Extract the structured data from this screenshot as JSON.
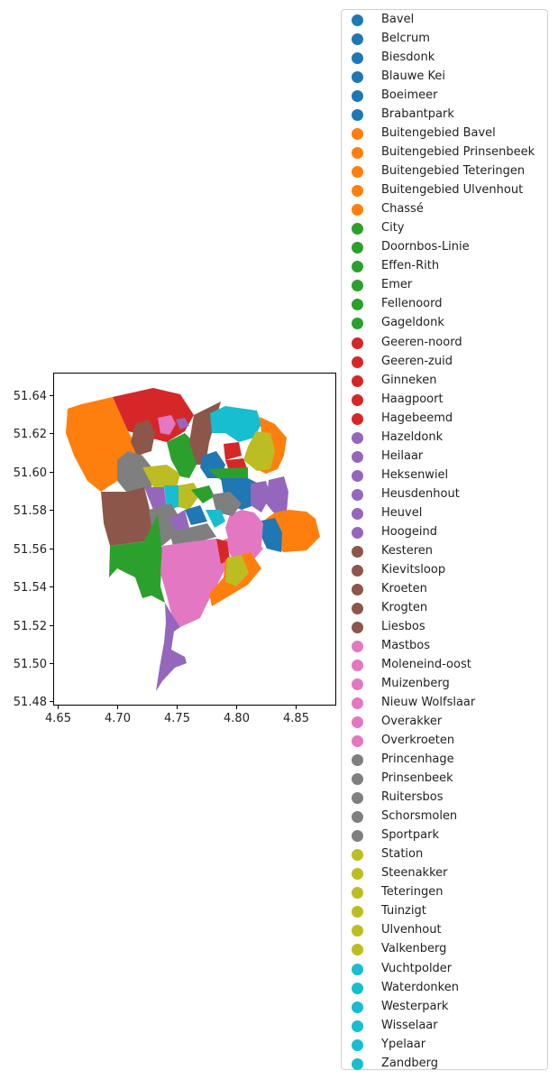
{
  "map": {
    "x_ticks": [
      "4.65",
      "4.70",
      "4.75",
      "4.80",
      "4.85"
    ],
    "y_ticks": [
      "51.64",
      "51.62",
      "51.60",
      "51.58",
      "51.56",
      "51.54",
      "51.52",
      "51.50",
      "51.48"
    ],
    "x_range": [
      4.65,
      4.885
    ],
    "y_range": [
      51.477,
      51.651
    ],
    "colormap": [
      "#1f77b4",
      "#ff7f0e",
      "#2ca02c",
      "#d62728",
      "#9467bd",
      "#8c564b",
      "#e377c2",
      "#7f7f7f",
      "#bcbd22",
      "#17becf"
    ],
    "legend_placement": "right, outside plot"
  },
  "legend": {
    "entries": [
      {
        "label": "Bavel",
        "color": "#1f77b4"
      },
      {
        "label": "Belcrum",
        "color": "#1f77b4"
      },
      {
        "label": "Biesdonk",
        "color": "#1f77b4"
      },
      {
        "label": "Blauwe Kei",
        "color": "#1f77b4"
      },
      {
        "label": "Boeimeer",
        "color": "#1f77b4"
      },
      {
        "label": "Brabantpark",
        "color": "#1f77b4"
      },
      {
        "label": "Buitengebied Bavel",
        "color": "#ff7f0e"
      },
      {
        "label": "Buitengebied Prinsenbeek",
        "color": "#ff7f0e"
      },
      {
        "label": "Buitengebied Teteringen",
        "color": "#ff7f0e"
      },
      {
        "label": "Buitengebied Ulvenhout",
        "color": "#ff7f0e"
      },
      {
        "label": "Chassé",
        "color": "#ff7f0e"
      },
      {
        "label": "City",
        "color": "#2ca02c"
      },
      {
        "label": "Doornbos-Linie",
        "color": "#2ca02c"
      },
      {
        "label": "Effen-Rith",
        "color": "#2ca02c"
      },
      {
        "label": "Emer",
        "color": "#2ca02c"
      },
      {
        "label": "Fellenoord",
        "color": "#2ca02c"
      },
      {
        "label": "Gageldonk",
        "color": "#2ca02c"
      },
      {
        "label": "Geeren-noord",
        "color": "#d62728"
      },
      {
        "label": "Geeren-zuid",
        "color": "#d62728"
      },
      {
        "label": "Ginneken",
        "color": "#d62728"
      },
      {
        "label": "Haagpoort",
        "color": "#d62728"
      },
      {
        "label": "Hagebeemd",
        "color": "#d62728"
      },
      {
        "label": "Hazeldonk",
        "color": "#9467bd"
      },
      {
        "label": "Heilaar",
        "color": "#9467bd"
      },
      {
        "label": "Heksenwiel",
        "color": "#9467bd"
      },
      {
        "label": "Heusdenhout",
        "color": "#9467bd"
      },
      {
        "label": "Heuvel",
        "color": "#9467bd"
      },
      {
        "label": "Hoogeind",
        "color": "#9467bd"
      },
      {
        "label": "Kesteren",
        "color": "#8c564b"
      },
      {
        "label": "Kievitsloop",
        "color": "#8c564b"
      },
      {
        "label": "Kroeten",
        "color": "#8c564b"
      },
      {
        "label": "Krogten",
        "color": "#8c564b"
      },
      {
        "label": "Liesbos",
        "color": "#8c564b"
      },
      {
        "label": "Mastbos",
        "color": "#e377c2"
      },
      {
        "label": "Moleneind-oost",
        "color": "#e377c2"
      },
      {
        "label": "Muizenberg",
        "color": "#e377c2"
      },
      {
        "label": "Nieuw Wolfslaar",
        "color": "#e377c2"
      },
      {
        "label": "Overakker",
        "color": "#e377c2"
      },
      {
        "label": "Overkroeten",
        "color": "#e377c2"
      },
      {
        "label": "Princenhage",
        "color": "#7f7f7f"
      },
      {
        "label": "Prinsenbeek",
        "color": "#7f7f7f"
      },
      {
        "label": "Ruitersbos",
        "color": "#7f7f7f"
      },
      {
        "label": "Schorsmolen",
        "color": "#7f7f7f"
      },
      {
        "label": "Sportpark",
        "color": "#7f7f7f"
      },
      {
        "label": "Station",
        "color": "#bcbd22"
      },
      {
        "label": "Steenakker",
        "color": "#bcbd22"
      },
      {
        "label": "Teteringen",
        "color": "#bcbd22"
      },
      {
        "label": "Tuinzigt",
        "color": "#bcbd22"
      },
      {
        "label": "Ulvenhout",
        "color": "#bcbd22"
      },
      {
        "label": "Valkenberg",
        "color": "#bcbd22"
      },
      {
        "label": "Vuchtpolder",
        "color": "#17becf"
      },
      {
        "label": "Waterdonken",
        "color": "#17becf"
      },
      {
        "label": "Westerpark",
        "color": "#17becf"
      },
      {
        "label": "Wisselaar",
        "color": "#17becf"
      },
      {
        "label": "Ypelaar",
        "color": "#17becf"
      },
      {
        "label": "Zandberg",
        "color": "#17becf"
      }
    ]
  }
}
